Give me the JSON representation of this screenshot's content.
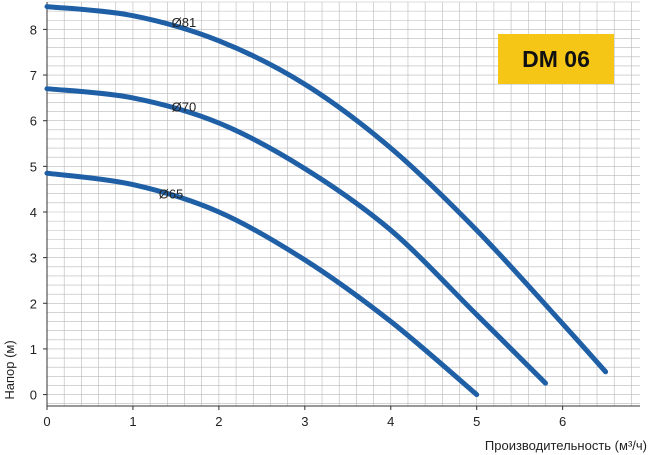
{
  "chart_data": {
    "type": "line",
    "title": "DM 06",
    "xlabel": "Производительность (м³/ч)",
    "ylabel": "Напор (м)",
    "xlim": [
      0,
      6.9
    ],
    "ylim": [
      -0.25,
      8.6
    ],
    "x_ticks": [
      "0",
      "1",
      "2",
      "3",
      "4",
      "5",
      "6"
    ],
    "y_ticks": [
      "0",
      "1",
      "2",
      "3",
      "4",
      "5",
      "6",
      "7",
      "8"
    ],
    "grid": true,
    "series": [
      {
        "name": "Ø81",
        "x": [
          0,
          1,
          2,
          3,
          4,
          5,
          6,
          6.5
        ],
        "y": [
          8.5,
          8.3,
          7.75,
          6.8,
          5.4,
          3.6,
          1.55,
          0.5
        ]
      },
      {
        "name": "Ø70",
        "x": [
          0,
          1,
          2,
          3,
          4,
          5,
          5.8
        ],
        "y": [
          6.7,
          6.5,
          5.95,
          4.95,
          3.6,
          1.75,
          0.25
        ]
      },
      {
        "name": "Ø65",
        "x": [
          0,
          1,
          2,
          3,
          4,
          5
        ],
        "y": [
          4.85,
          4.6,
          4.0,
          2.95,
          1.6,
          0.0
        ]
      }
    ],
    "colors": {
      "curve": "#1f5fa6",
      "grid": "#b9b9b9",
      "badge": "#f6c617"
    }
  }
}
